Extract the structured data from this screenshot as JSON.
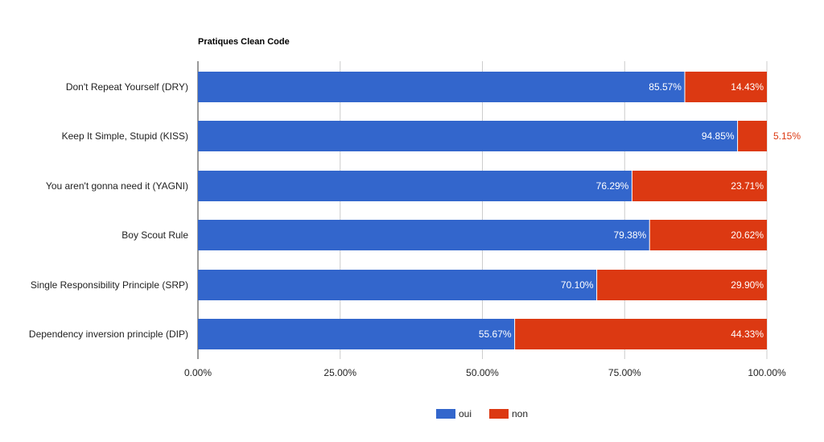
{
  "chart_data": {
    "type": "bar",
    "orientation": "horizontal",
    "stacked": true,
    "title": "Pratiques Clean Code",
    "categories": [
      "Don't Repeat Yourself (DRY)",
      "Keep It Simple, Stupid (KISS)",
      "You aren't gonna need it (YAGNI)",
      "Boy Scout Rule",
      "Single Responsibility Principle (SRP)",
      "Dependency inversion principle (DIP)"
    ],
    "series": [
      {
        "name": "oui",
        "color": "#3366cc",
        "values": [
          85.57,
          94.85,
          76.29,
          79.38,
          70.1,
          55.67
        ],
        "labels": [
          "85.57%",
          "94.85%",
          "76.29%",
          "79.38%",
          "70.10%",
          "55.67%"
        ]
      },
      {
        "name": "non",
        "color": "#dc3912",
        "values": [
          14.43,
          5.15,
          23.71,
          20.62,
          29.9,
          44.33
        ],
        "labels": [
          "14.43%",
          "5.15%",
          "23.71%",
          "20.62%",
          "29.90%",
          "44.33%"
        ]
      }
    ],
    "xlim": [
      0,
      100
    ],
    "xticks": [
      0,
      25,
      50,
      75,
      100
    ],
    "xtick_labels": [
      "0.00%",
      "25.00%",
      "50.00%",
      "75.00%",
      "100.00%"
    ],
    "grid": true,
    "legend_position": "bottom"
  }
}
